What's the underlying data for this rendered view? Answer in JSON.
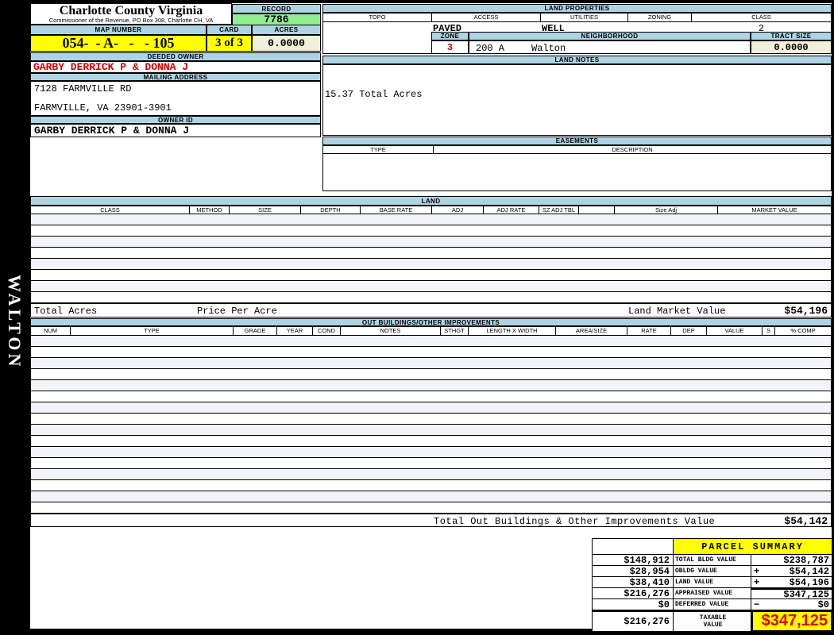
{
  "sidebar": {
    "vertical_label": "WALTON"
  },
  "header": {
    "title": "Charlotte County Virginia",
    "subtitle": "Commissioner of the Revenue, PO Box 308, Charlotte CH, VA",
    "record_label": "RECORD",
    "record_value": "7786",
    "map_number_label": "MAP NUMBER",
    "map_number_value": "054-  - A-   -   - 105",
    "card_label": "CARD",
    "card_value": "3 of 3",
    "acres_label": "ACRES",
    "acres_value": "0.0000"
  },
  "owner": {
    "deeded_owner_label": "DEEDED OWNER",
    "deeded_owner": "GARBY DERRICK P & DONNA J",
    "mailing_address_label": "MAILING ADDRESS",
    "address_line1": "7128 FARMVILLE RD",
    "address_line2": "FARMVILLE, VA 23901-3901",
    "owner_id_label": "OWNER ID",
    "owner_id": "GARBY DERRICK P & DONNA J"
  },
  "land_properties": {
    "title": "LAND PROPERTIES",
    "columns": [
      "TOPO",
      "ACCESS",
      "UTILITIES",
      "ZONING",
      "CLASS"
    ],
    "access": "PAVED",
    "utilities": "WELL",
    "class": "2",
    "zone_label": "ZONE",
    "zone": "3",
    "neighborhood_label": "NEIGHBORHOOD",
    "neighborhood_code": "200 A",
    "neighborhood_name": "Walton",
    "tract_size_label": "TRACT SIZE",
    "tract_size": "0.0000"
  },
  "land_notes": {
    "title": "LAND NOTES",
    "note": "15.37 Total Acres"
  },
  "easements": {
    "title": "EASEMENTS",
    "columns": [
      "TYPE",
      "DESCRIPTION"
    ]
  },
  "land": {
    "title": "LAND",
    "columns": [
      "CLASS",
      "METHOD",
      "SIZE",
      "DEPTH",
      "BASE RATE",
      "ADJ",
      "ADJ RATE",
      "SZ ADJ TBL",
      "",
      "Size Adj",
      "MARKET VALUE"
    ],
    "empty_row_count": 8,
    "total_acres_label": "Total Acres",
    "price_per_acre_label": "Price Per Acre",
    "market_value_label": "Land Market Value",
    "market_value": "$54,196"
  },
  "out_buildings": {
    "title": "OUT BUILDINGS/OTHER IMPROVEMENTS",
    "columns": [
      "NUM",
      "TYPE",
      "GRADE",
      "YEAR",
      "COND",
      "NOTES",
      "STHGT",
      "LENGTH X WIDTH",
      "AREA/SIZE",
      "RATE",
      "DEP",
      "VALUE",
      "S",
      "% COMP"
    ],
    "empty_row_count": 16,
    "total_label": "Total Out Buildings & Other Improvements Value",
    "total_value": "$54,142"
  },
  "parcel_summary": {
    "title": "PARCEL SUMMARY",
    "rows": [
      {
        "left": "$148,912",
        "label": "TOTAL BLDG VALUE",
        "op": "",
        "right": "$238,787",
        "thick": false
      },
      {
        "left": "$28,954",
        "label": "OBLDG VALUE",
        "op": "+",
        "right": "$54,142",
        "thick": false
      },
      {
        "left": "$38,410",
        "label": "LAND VALUE",
        "op": "+",
        "right": "$54,196",
        "thick": false
      },
      {
        "left": "$216,276",
        "label": "APPRAISED VALUE",
        "op": "",
        "right": "$347,125",
        "thick": true
      },
      {
        "left": "$0",
        "label": "DEFERRED VALUE",
        "op": "−",
        "right": "$0",
        "thick": false
      }
    ],
    "taxable": {
      "left": "$216,276",
      "label": "TAXABLE VALUE",
      "value": "$347,125"
    }
  },
  "colors": {
    "section_header_blue": "#aed4e4",
    "highlight_yellow": "#ffff00",
    "record_green": "#90ee90",
    "field_cream": "#f0f0da",
    "alert_red": "#cc0000",
    "taxable_red": "#e00000",
    "alt_row": "#f3f4fa"
  }
}
